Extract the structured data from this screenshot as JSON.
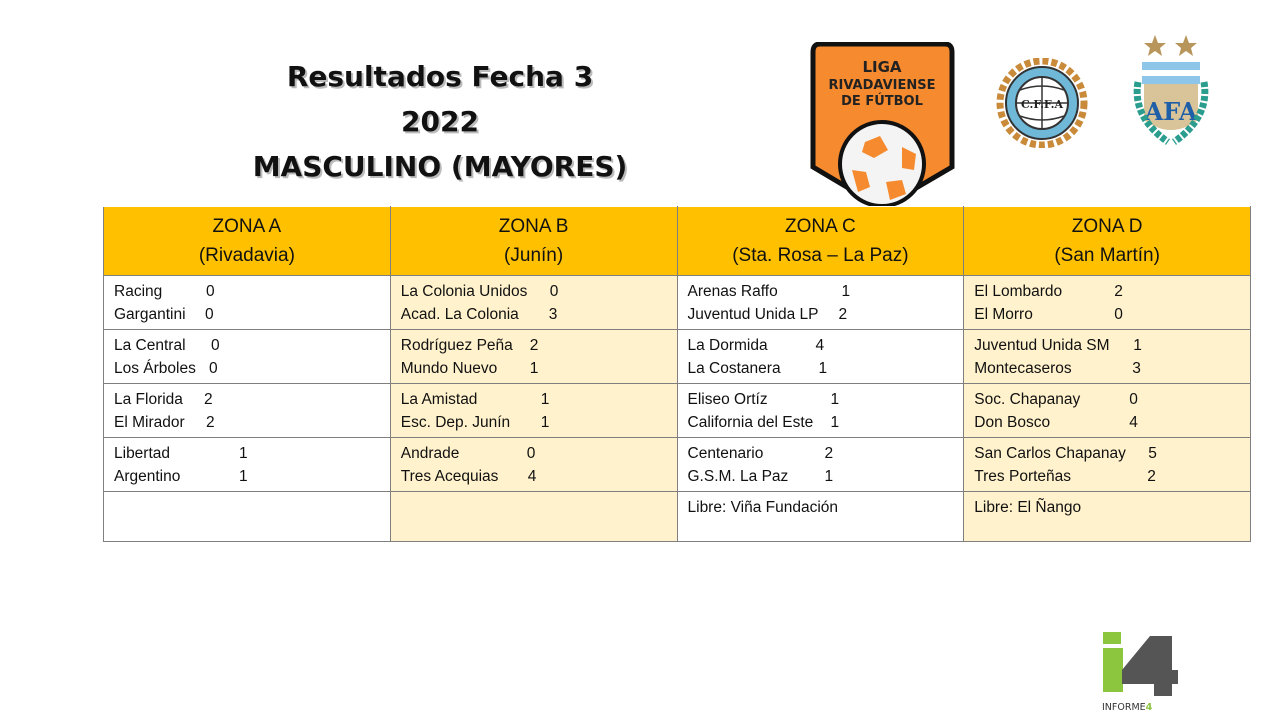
{
  "title": {
    "line1": "Resultados Fecha 3",
    "line2": "2022",
    "line3": "MASCULINO (MAYORES)"
  },
  "logos": {
    "liga": {
      "line1": "LIGA",
      "line2": "RIVADAVIENSE",
      "line3": "DE FÚTBOL",
      "color": "#F58A2E"
    },
    "cffa": "C.F.F.A",
    "afa": "AFA",
    "informe": "INFORME4"
  },
  "colors": {
    "header": "#FFC000",
    "alt_column": "#FFF2CC",
    "border": "#7F7F7F"
  },
  "zones": [
    {
      "name": "ZONA A",
      "place": "(Rivadavia)",
      "matches": [
        [
          {
            "team": "Racing",
            "score": "0"
          },
          {
            "team": "Gargantini",
            "score": "0"
          }
        ],
        [
          {
            "team": "La Central",
            "score": "0"
          },
          {
            "team": "Los Árboles",
            "score": "0"
          }
        ],
        [
          {
            "team": "La Florida",
            "score": "2"
          },
          {
            "team": "El Mirador",
            "score": "2"
          }
        ],
        [
          {
            "team": "Libertad",
            "score": "1"
          },
          {
            "team": "Argentino",
            "score": "1"
          }
        ]
      ],
      "libre": ""
    },
    {
      "name": "ZONA B",
      "place": "(Junín)",
      "matches": [
        [
          {
            "team": "La Colonia Unidos",
            "score": "0"
          },
          {
            "team": "Acad. La Colonia",
            "score": "3"
          }
        ],
        [
          {
            "team": "Rodríguez Peña",
            "score": "2"
          },
          {
            "team": "Mundo Nuevo",
            "score": "1"
          }
        ],
        [
          {
            "team": "La Amistad",
            "score": "1"
          },
          {
            "team": "Esc. Dep. Junín",
            "score": "1"
          }
        ],
        [
          {
            "team": "Andrade",
            "score": "0"
          },
          {
            "team": "Tres Acequias",
            "score": "4"
          }
        ]
      ],
      "libre": ""
    },
    {
      "name": "ZONA C",
      "place": "(Sta. Rosa – La Paz)",
      "matches": [
        [
          {
            "team": "Arenas Raffo",
            "score": "1"
          },
          {
            "team": "Juventud Unida LP",
            "score": "2"
          }
        ],
        [
          {
            "team": "La Dormida",
            "score": "4"
          },
          {
            "team": "La Costanera",
            "score": "1"
          }
        ],
        [
          {
            "team": "Eliseo Ortíz",
            "score": "1"
          },
          {
            "team": "California del Este",
            "score": "1"
          }
        ],
        [
          {
            "team": "Centenario",
            "score": "2"
          },
          {
            "team": "G.S.M. La Paz",
            "score": "1"
          }
        ]
      ],
      "libre": "Libre: Viña Fundación"
    },
    {
      "name": "ZONA D",
      "place": "(San Martín)",
      "matches": [
        [
          {
            "team": "El Lombardo",
            "score": "2"
          },
          {
            "team": "El Morro",
            "score": "0"
          }
        ],
        [
          {
            "team": "Juventud Unida SM",
            "score": "1"
          },
          {
            "team": "Montecaseros",
            "score": "3"
          }
        ],
        [
          {
            "team": "Soc. Chapanay",
            "score": "0"
          },
          {
            "team": "Don Bosco",
            "score": "4"
          }
        ],
        [
          {
            "team": "San Carlos Chapanay",
            "score": "5"
          },
          {
            "team": "Tres Porteñas",
            "score": "2"
          }
        ]
      ],
      "libre": "Libre: El Ñango"
    }
  ]
}
